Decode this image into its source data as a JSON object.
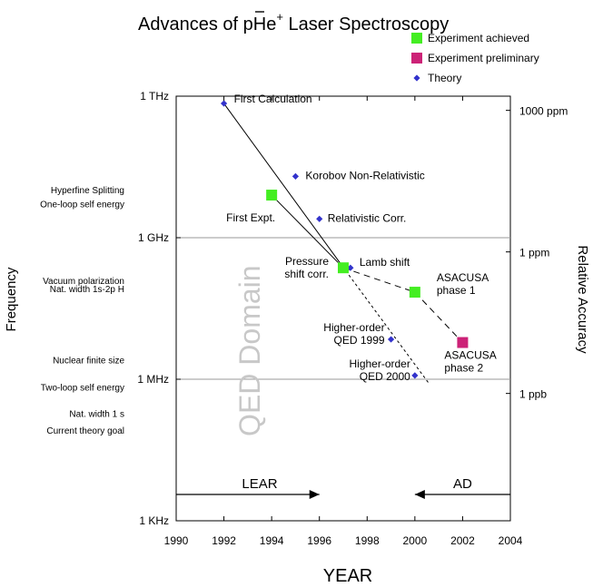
{
  "chart_data": {
    "type": "scatter",
    "title": {
      "pre": "Advances of ",
      "bar_letter": "p",
      "mid": "He",
      "sup": "+",
      "post": " Laser Spectroscopy"
    },
    "xlabel": "YEAR",
    "ylabel_left": "Frequency",
    "ylabel_right": "Relative Accuracy",
    "xlim": [
      1990,
      2004
    ],
    "x_ticks": [
      "1990",
      "1992",
      "1994",
      "1996",
      "1998",
      "2000",
      "2002",
      "2004"
    ],
    "y_scale": "log",
    "ylim_hz": [
      1000,
      1000000000000
    ],
    "y_ticks_left": [
      {
        "value": 1000000000000,
        "label": "1 THz"
      },
      {
        "value": 1000000000,
        "label": "1 GHz"
      },
      {
        "value": 1000000,
        "label": "1 MHz"
      },
      {
        "value": 1000,
        "label": "1 KHz"
      }
    ],
    "y_ticks_right": [
      {
        "value": 500000000000,
        "label": "1000 ppm"
      },
      {
        "value": 500000000,
        "label": "1 ppm"
      },
      {
        "value": 500000,
        "label": "1 ppb"
      }
    ],
    "horizontal_gridlines_hz": [
      1000000000,
      1000000
    ],
    "legend_position": "top-right",
    "legend": [
      {
        "marker": "square",
        "color": "#44ee22",
        "label": "Experiment achieved"
      },
      {
        "marker": "square",
        "color": "#cc2277",
        "label": "Experiment preliminary"
      },
      {
        "marker": "diamond",
        "color": "#3333cc",
        "label": "Theory"
      }
    ],
    "series": [
      {
        "name": "Theory",
        "marker": "diamond",
        "color": "#3333cc",
        "points": [
          {
            "x": 1992,
            "y": 700000000000,
            "label": "First Calculation"
          },
          {
            "x": 1995,
            "y": 20000000000,
            "label": "Korobov Non-Relativistic"
          },
          {
            "x": 1996,
            "y": 2500000000,
            "label": "Relativistic Corr."
          },
          {
            "x": 1997.3,
            "y": 230000000,
            "label": "Lamb shift"
          },
          {
            "x": 1999,
            "y": 7000000,
            "label": "Higher-order QED 1999"
          },
          {
            "x": 2000,
            "y": 1200000,
            "label": "Higher-order QED 2000"
          }
        ]
      },
      {
        "name": "Experiment achieved",
        "marker": "square",
        "color": "#44ee22",
        "points": [
          {
            "x": 1994,
            "y": 8000000000,
            "label": "First Expt."
          },
          {
            "x": 1997,
            "y": 230000000,
            "label": "Pressure shift corr."
          },
          {
            "x": 2000,
            "y": 70000000,
            "label": "ASACUSA phase 1"
          }
        ]
      },
      {
        "name": "Experiment preliminary",
        "marker": "square",
        "color": "#cc2277",
        "points": [
          {
            "x": 2002,
            "y": 6000000,
            "label": "ASACUSA phase 2"
          }
        ]
      }
    ],
    "trend_lines": [
      {
        "style": "solid",
        "from": {
          "x": 1992,
          "y": 700000000000
        },
        "to": {
          "x": 1997.1,
          "y": 200000000
        }
      },
      {
        "style": "dashed",
        "from": {
          "x": 1997.1,
          "y": 200000000
        },
        "to": {
          "x": 2000.6,
          "y": 800000
        }
      },
      {
        "style": "solid",
        "from": {
          "x": 1994,
          "y": 8000000000
        },
        "to": {
          "x": 1997,
          "y": 230000000
        }
      },
      {
        "style": "dashed",
        "from": {
          "x": 1997,
          "y": 230000000
        },
        "to": {
          "x": 2000,
          "y": 70000000
        }
      },
      {
        "style": "dashed",
        "from": {
          "x": 2000,
          "y": 70000000
        },
        "to": {
          "x": 2002,
          "y": 6000000
        }
      }
    ],
    "side_labels": [
      {
        "text": "Hyperfine Splitting",
        "y": 10000000000
      },
      {
        "text": "One-loop self energy",
        "y": 5000000000
      },
      {
        "text": "Vacuum polarization",
        "y": 120000000
      },
      {
        "text": "Nat. width 1s-2p H",
        "y": 80000000
      },
      {
        "text": "Nuclear finite size",
        "y": 2500000
      },
      {
        "text": "Two-loop self energy",
        "y": 650000
      },
      {
        "text": "Nat. width 1   s",
        "y": 180000
      },
      {
        "text": "Current theory goal",
        "y": 80000
      }
    ],
    "region_label": "QED Domain",
    "eras": [
      {
        "label": "LEAR",
        "arrow": "right",
        "from_year": 1990,
        "to_year": 1996
      },
      {
        "label": "AD",
        "arrow": "left",
        "from_year": 2004,
        "to_year": 2000
      }
    ]
  }
}
